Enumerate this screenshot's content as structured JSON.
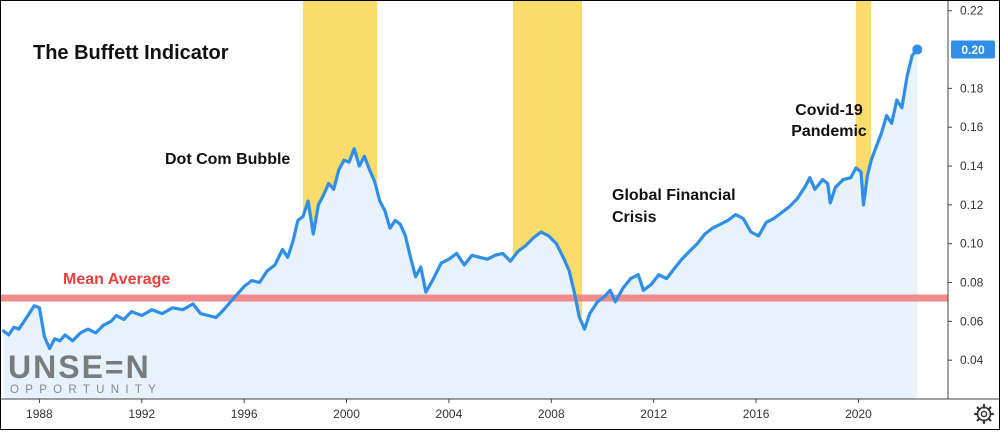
{
  "chart_data": {
    "type": "line",
    "title": "The Buffett Indicator",
    "xlabel": "",
    "ylabel": "",
    "xlim": [
      1986.5,
      2023.5
    ],
    "ylim": [
      0.02,
      0.225
    ],
    "x_ticks": [
      "1988",
      "1992",
      "1996",
      "2000",
      "2004",
      "2008",
      "2012",
      "2016",
      "2020"
    ],
    "y_ticks": [
      "0.04",
      "0.06",
      "0.08",
      "0.10",
      "0.12",
      "0.14",
      "0.16",
      "0.18",
      "0.22"
    ],
    "current_value_label": "0.20",
    "series": [
      {
        "color": "#2f8fe8",
        "points": [
          [
            1986.6,
            0.055
          ],
          [
            1986.8,
            0.053
          ],
          [
            1987.0,
            0.057
          ],
          [
            1987.2,
            0.056
          ],
          [
            1987.5,
            0.062
          ],
          [
            1987.8,
            0.068
          ],
          [
            1988.0,
            0.067
          ],
          [
            1988.2,
            0.052
          ],
          [
            1988.4,
            0.046
          ],
          [
            1988.6,
            0.051
          ],
          [
            1988.8,
            0.05
          ],
          [
            1989.0,
            0.053
          ],
          [
            1989.3,
            0.05
          ],
          [
            1989.6,
            0.054
          ],
          [
            1989.9,
            0.056
          ],
          [
            1990.2,
            0.054
          ],
          [
            1990.5,
            0.058
          ],
          [
            1990.8,
            0.06
          ],
          [
            1991.0,
            0.063
          ],
          [
            1991.3,
            0.061
          ],
          [
            1991.6,
            0.065
          ],
          [
            1992.0,
            0.063
          ],
          [
            1992.4,
            0.066
          ],
          [
            1992.8,
            0.064
          ],
          [
            1993.2,
            0.067
          ],
          [
            1993.6,
            0.066
          ],
          [
            1994.0,
            0.069
          ],
          [
            1994.3,
            0.064
          ],
          [
            1994.6,
            0.063
          ],
          [
            1994.9,
            0.062
          ],
          [
            1995.2,
            0.066
          ],
          [
            1995.6,
            0.072
          ],
          [
            1996.0,
            0.078
          ],
          [
            1996.3,
            0.081
          ],
          [
            1996.6,
            0.08
          ],
          [
            1996.9,
            0.086
          ],
          [
            1997.2,
            0.089
          ],
          [
            1997.5,
            0.097
          ],
          [
            1997.7,
            0.093
          ],
          [
            1997.9,
            0.101
          ],
          [
            1998.1,
            0.112
          ],
          [
            1998.3,
            0.114
          ],
          [
            1998.5,
            0.122
          ],
          [
            1998.7,
            0.105
          ],
          [
            1998.9,
            0.12
          ],
          [
            1999.1,
            0.125
          ],
          [
            1999.3,
            0.131
          ],
          [
            1999.5,
            0.128
          ],
          [
            1999.7,
            0.138
          ],
          [
            1999.9,
            0.143
          ],
          [
            2000.1,
            0.142
          ],
          [
            2000.3,
            0.149
          ],
          [
            2000.5,
            0.14
          ],
          [
            2000.7,
            0.145
          ],
          [
            2000.9,
            0.138
          ],
          [
            2001.1,
            0.132
          ],
          [
            2001.3,
            0.122
          ],
          [
            2001.5,
            0.117
          ],
          [
            2001.7,
            0.108
          ],
          [
            2001.9,
            0.112
          ],
          [
            2002.1,
            0.11
          ],
          [
            2002.3,
            0.104
          ],
          [
            2002.5,
            0.093
          ],
          [
            2002.7,
            0.083
          ],
          [
            2002.9,
            0.088
          ],
          [
            2003.1,
            0.075
          ],
          [
            2003.4,
            0.082
          ],
          [
            2003.7,
            0.09
          ],
          [
            2004.0,
            0.092
          ],
          [
            2004.3,
            0.095
          ],
          [
            2004.6,
            0.089
          ],
          [
            2004.9,
            0.094
          ],
          [
            2005.2,
            0.093
          ],
          [
            2005.5,
            0.092
          ],
          [
            2005.8,
            0.094
          ],
          [
            2006.1,
            0.095
          ],
          [
            2006.4,
            0.091
          ],
          [
            2006.7,
            0.096
          ],
          [
            2007.0,
            0.099
          ],
          [
            2007.3,
            0.103
          ],
          [
            2007.6,
            0.106
          ],
          [
            2007.9,
            0.104
          ],
          [
            2008.2,
            0.1
          ],
          [
            2008.5,
            0.092
          ],
          [
            2008.7,
            0.086
          ],
          [
            2008.9,
            0.075
          ],
          [
            2009.1,
            0.062
          ],
          [
            2009.3,
            0.056
          ],
          [
            2009.5,
            0.064
          ],
          [
            2009.8,
            0.07
          ],
          [
            2010.1,
            0.073
          ],
          [
            2010.3,
            0.076
          ],
          [
            2010.5,
            0.07
          ],
          [
            2010.8,
            0.077
          ],
          [
            2011.1,
            0.082
          ],
          [
            2011.4,
            0.084
          ],
          [
            2011.6,
            0.076
          ],
          [
            2011.9,
            0.079
          ],
          [
            2012.2,
            0.084
          ],
          [
            2012.5,
            0.082
          ],
          [
            2012.8,
            0.087
          ],
          [
            2013.1,
            0.092
          ],
          [
            2013.4,
            0.096
          ],
          [
            2013.7,
            0.1
          ],
          [
            2014.0,
            0.105
          ],
          [
            2014.3,
            0.108
          ],
          [
            2014.6,
            0.11
          ],
          [
            2014.9,
            0.112
          ],
          [
            2015.2,
            0.115
          ],
          [
            2015.5,
            0.113
          ],
          [
            2015.8,
            0.106
          ],
          [
            2016.1,
            0.104
          ],
          [
            2016.4,
            0.111
          ],
          [
            2016.7,
            0.113
          ],
          [
            2017.0,
            0.116
          ],
          [
            2017.3,
            0.119
          ],
          [
            2017.6,
            0.123
          ],
          [
            2017.9,
            0.129
          ],
          [
            2018.1,
            0.134
          ],
          [
            2018.3,
            0.128
          ],
          [
            2018.6,
            0.133
          ],
          [
            2018.8,
            0.131
          ],
          [
            2018.9,
            0.121
          ],
          [
            2019.1,
            0.129
          ],
          [
            2019.4,
            0.133
          ],
          [
            2019.7,
            0.134
          ],
          [
            2019.9,
            0.139
          ],
          [
            2020.1,
            0.137
          ],
          [
            2020.2,
            0.12
          ],
          [
            2020.35,
            0.135
          ],
          [
            2020.5,
            0.143
          ],
          [
            2020.7,
            0.15
          ],
          [
            2020.9,
            0.157
          ],
          [
            2021.1,
            0.166
          ],
          [
            2021.3,
            0.162
          ],
          [
            2021.5,
            0.174
          ],
          [
            2021.7,
            0.17
          ],
          [
            2021.9,
            0.186
          ],
          [
            2022.1,
            0.197
          ],
          [
            2022.3,
            0.2
          ]
        ]
      }
    ],
    "mean_line": {
      "label": "Mean Average",
      "value": 0.072,
      "color": "#f08080"
    },
    "shaded_periods": [
      {
        "start": 1998.3,
        "end": 2001.2,
        "color": "#f9dc6c"
      },
      {
        "start": 2006.5,
        "end": 2009.2,
        "color": "#f9dc6c"
      },
      {
        "start": 2019.9,
        "end": 2020.5,
        "color": "#f9dc6c"
      }
    ],
    "annotations": [
      {
        "id": "dotcom",
        "text": "Dot Com Bubble"
      },
      {
        "id": "gfc1",
        "text": "Global Financial"
      },
      {
        "id": "gfc2",
        "text": "Crisis"
      },
      {
        "id": "covid1",
        "text": "Covid-19"
      },
      {
        "id": "covid2",
        "text": "Pandemic"
      }
    ],
    "grid": false
  },
  "watermark": {
    "line1": "UNSE=N",
    "line2": "OPPORTUNITY"
  },
  "icons": {
    "settings": "gear-icon"
  },
  "colors": {
    "line": "#2f8fe8",
    "fill": "#e8f2fc",
    "badge": "#2f8fe8"
  }
}
